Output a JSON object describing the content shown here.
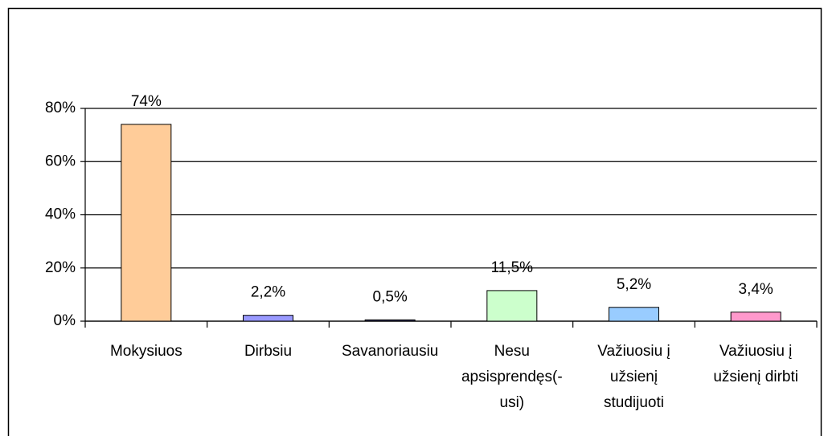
{
  "chart_data": {
    "type": "bar",
    "categories": [
      [
        "Mokysiuos"
      ],
      [
        "Dirbsiu"
      ],
      [
        "Savanoriausiu"
      ],
      [
        "Nesu",
        "apsisprendęs(-",
        "usi)"
      ],
      [
        "Važiuosiu į",
        "užsienį",
        "studijuoti"
      ],
      [
        "Važiuosiu į",
        "užsienį dirbti"
      ]
    ],
    "values": [
      74,
      2.2,
      0.5,
      11.5,
      5.2,
      3.4
    ],
    "value_labels": [
      "74%",
      "2,2%",
      "0,5%",
      "11,5%",
      "5,2%",
      "3,4%"
    ],
    "colors": [
      "#ffcc99",
      "#9999ff",
      "#333366",
      "#ccffcc",
      "#99ccff",
      "#ff99cc"
    ],
    "ylim": [
      0,
      80
    ],
    "yticks": [
      {
        "value": 0,
        "label": "0%"
      },
      {
        "value": 20,
        "label": "20%"
      },
      {
        "value": 40,
        "label": "40%"
      },
      {
        "value": 60,
        "label": "60%"
      },
      {
        "value": 80,
        "label": "80%"
      }
    ],
    "grid": true
  }
}
